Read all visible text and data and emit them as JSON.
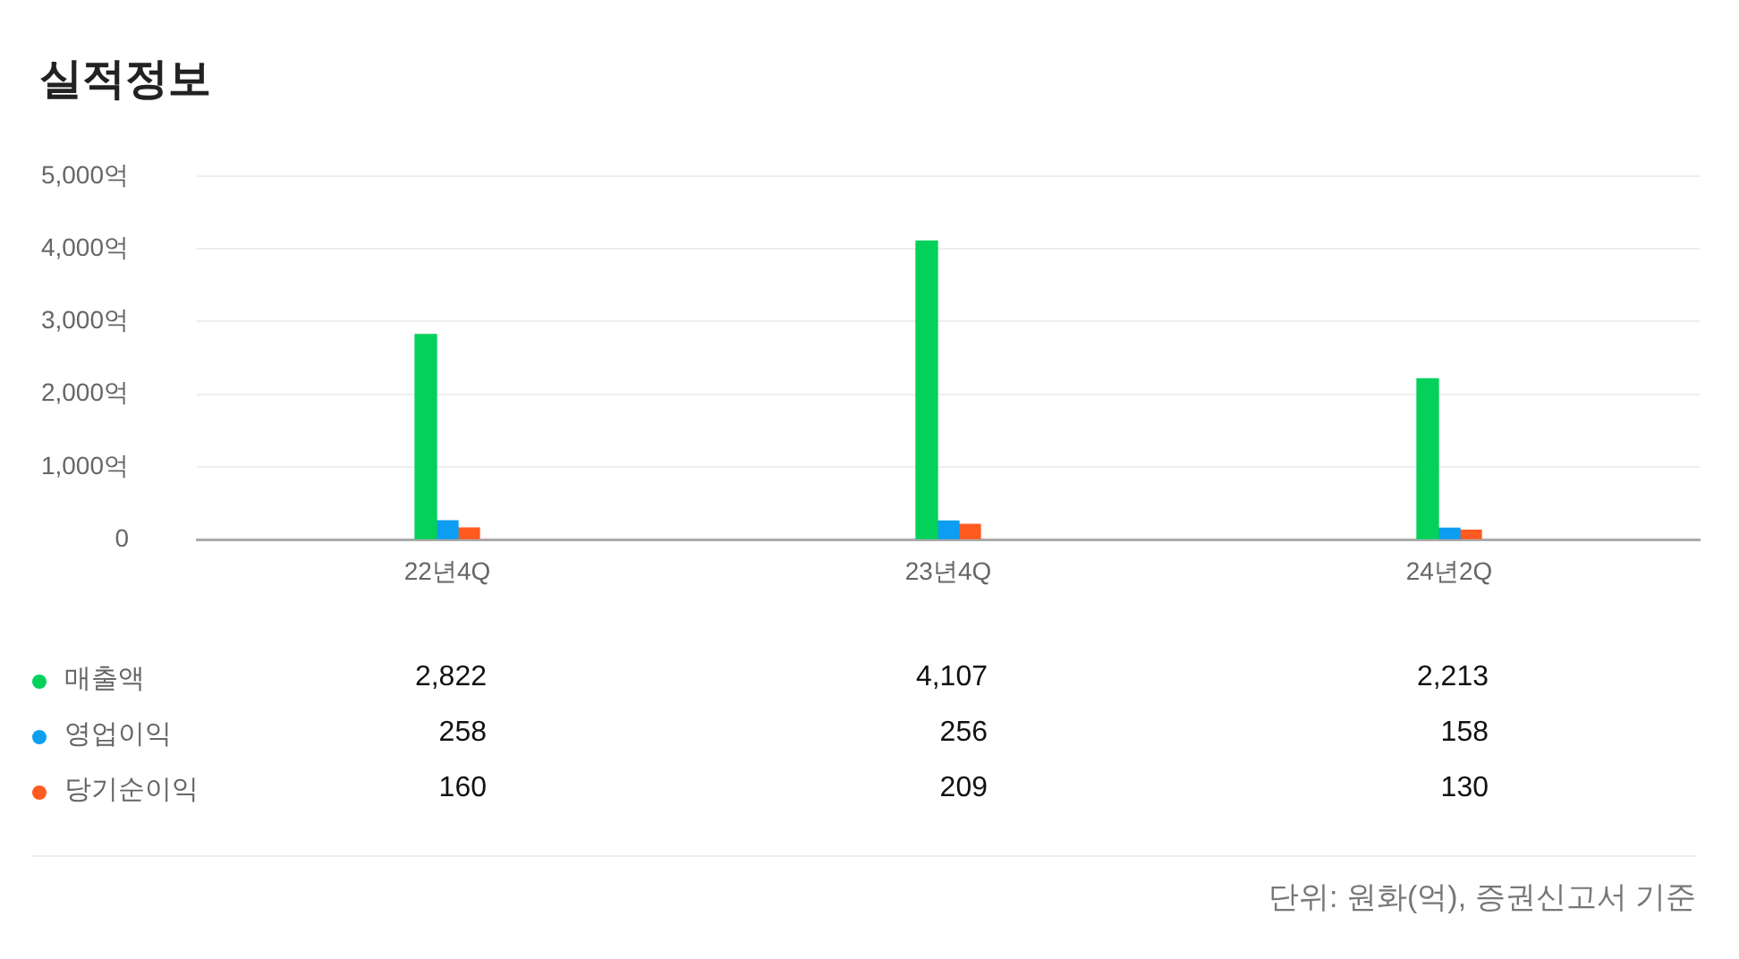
{
  "chart_data": {
    "type": "bar",
    "title": "실적정보",
    "categories": [
      "22년4Q",
      "23년4Q",
      "24년2Q"
    ],
    "series": [
      {
        "name": "매출액",
        "color": "#03d15a",
        "values": [
          2822,
          4107,
          2213
        ],
        "value_labels": [
          "2,822",
          "4,107",
          "2,213"
        ]
      },
      {
        "name": "영업이익",
        "color": "#0d9ef2",
        "values": [
          258,
          256,
          158
        ],
        "value_labels": [
          "258",
          "256",
          "158"
        ]
      },
      {
        "name": "당기순이익",
        "color": "#ff5a1f",
        "values": [
          160,
          209,
          130
        ],
        "value_labels": [
          "160",
          "209",
          "130"
        ]
      }
    ],
    "ylim": [
      0,
      5000
    ],
    "yticks": [
      0,
      {
        "value": 1000,
        "label": "1,000억"
      },
      {
        "value": 2000,
        "label": "2,000억"
      },
      {
        "value": 3000,
        "label": "3,000억"
      },
      {
        "value": 4000,
        "label": "4,000억"
      },
      {
        "value": 5000,
        "label": "5,000억"
      }
    ],
    "grid": "y",
    "legend": "bottom left",
    "annotations": [
      "단위: 원화(억), 증권신고서 기준"
    ]
  }
}
